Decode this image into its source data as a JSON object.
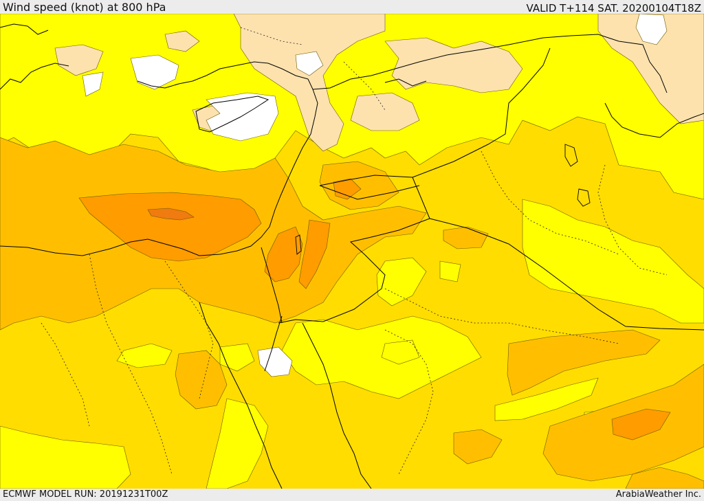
{
  "header": {
    "title": "Wind speed (knot) at 800 hPa",
    "valid": "VALID T+114 SAT. 20200104T18Z"
  },
  "footer": {
    "model_run": "ECMWF MODEL RUN: 20191231T00Z",
    "credit": "ArabiaWeather Inc."
  },
  "map": {
    "variable": "wind speed",
    "units": "knot",
    "level": "800 hPa",
    "shading_colors": {
      "calm": "#ffffff",
      "very_light": "#fde2ae",
      "light": "#ffff00",
      "moderate": "#ffdd00",
      "fresh": "#ffbf00",
      "strong": "#ff9c00",
      "very_strong": "#f07b10"
    },
    "boundary_color": "#000000"
  }
}
